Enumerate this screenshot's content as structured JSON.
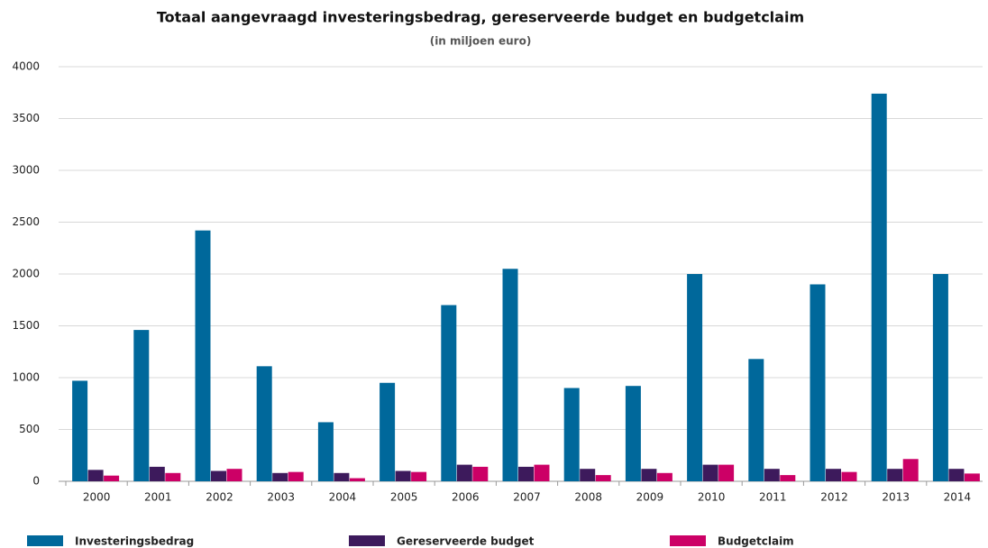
{
  "chart_data": {
    "type": "bar",
    "title": "Totaal aangevraagd investeringsbedrag, gereserveerde budget en budgetclaim",
    "subtitle": "(in miljoen euro)",
    "categories": [
      "2000",
      "2001",
      "2002",
      "2003",
      "2004",
      "2005",
      "2006",
      "2007",
      "2008",
      "2009",
      "2010",
      "2011",
      "2012",
      "2013",
      "2014"
    ],
    "series": [
      {
        "name": "Investeringsbedrag",
        "color": "#00689b",
        "values": [
          970,
          1460,
          2420,
          1110,
          570,
          950,
          1700,
          2050,
          900,
          920,
          2000,
          1180,
          1900,
          3740,
          2000
        ]
      },
      {
        "name": "Gereserveerde budget",
        "color": "#3d1a5c",
        "values": [
          110,
          140,
          100,
          80,
          80,
          100,
          160,
          140,
          120,
          120,
          160,
          120,
          120,
          120,
          120
        ]
      },
      {
        "name": "Budgetclaim",
        "color": "#cc0066",
        "values": [
          55,
          80,
          120,
          90,
          30,
          90,
          140,
          160,
          60,
          80,
          160,
          60,
          90,
          215,
          75
        ]
      }
    ],
    "ylim": [
      0,
      4000
    ],
    "yticks": [
      0,
      500,
      1000,
      1500,
      2000,
      2500,
      3000,
      3500,
      4000
    ],
    "grid": true,
    "legend": "bottom"
  }
}
